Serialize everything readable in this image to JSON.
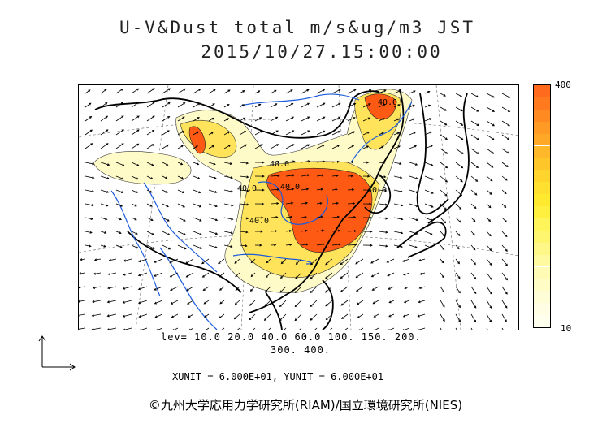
{
  "title": {
    "line1": "U-V&Dust total m/s&ug/m3 JST",
    "line2": "2015/10/27.15:00:00"
  },
  "colorbar": {
    "max_label": "400",
    "min_label": "10",
    "colors": [
      "#ff6a1c",
      "#ff7a1e",
      "#ff8a22",
      "#ff9a24",
      "#ffa828",
      "#ffb82a",
      "#ffc62a",
      "#ffd42c",
      "#ffdf30",
      "#ffea30",
      "#fff040",
      "#fff45a",
      "#fff670",
      "#fff888",
      "#fffaa0",
      "#fffbb4",
      "#fffcc6",
      "#fffdd6",
      "#fffee4",
      "#ffffee"
    ]
  },
  "levels": {
    "line1": "lev= 10.0 20.0 40.0 60.0 100. 150. 200.",
    "line2": "300. 400."
  },
  "contour_labels": [
    "40.0",
    "40.0",
    "40.0",
    "40.0",
    "40.0",
    "40.0"
  ],
  "unit_text": "XUNIT = 6.000E+01, YUNIT = 6.000E+01",
  "credit": "©九州大学応用力学研究所(RIAM)/国立環境研究所(NIES)",
  "legend": {
    "layer_icon": "reference-vector-icon"
  },
  "colors": {
    "high": "#ff5a14",
    "medium": "#ffd42c",
    "low": "#fffbc8",
    "coast": "#000000",
    "river": "#1a5adc"
  }
}
